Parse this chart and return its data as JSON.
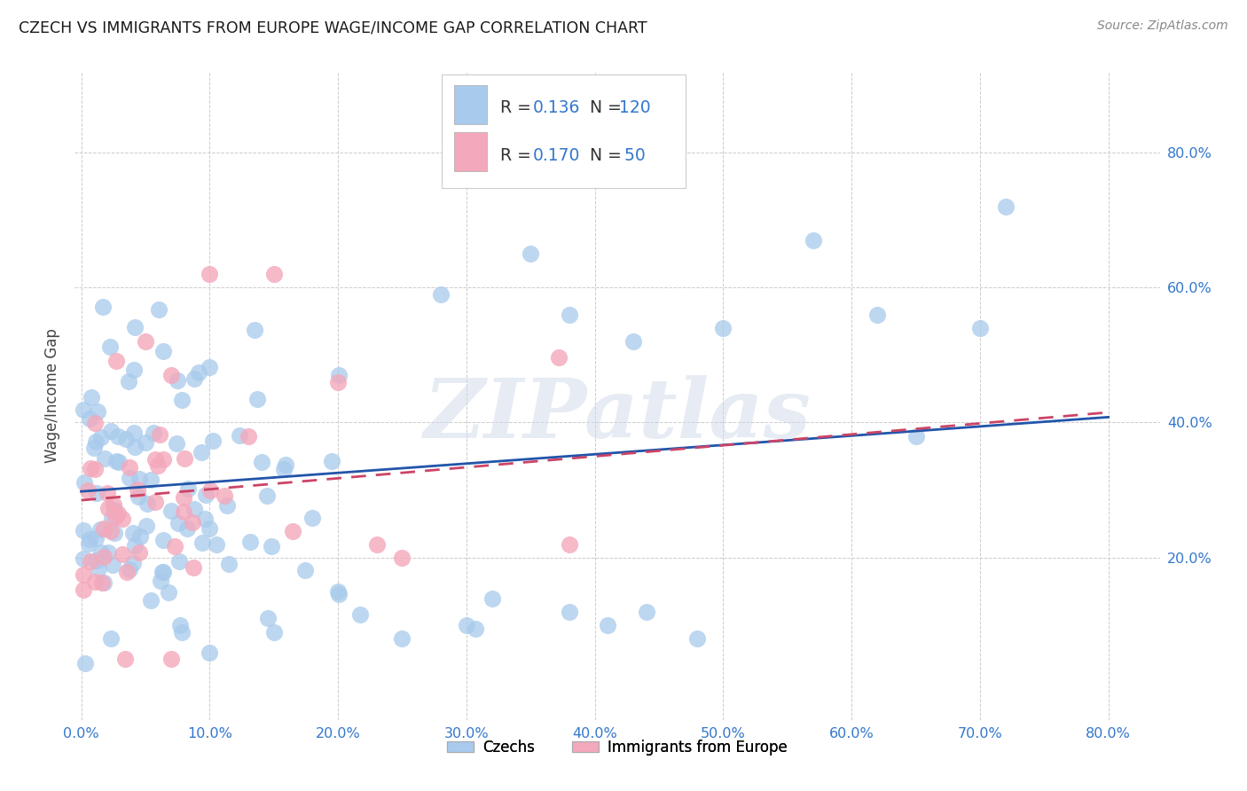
{
  "title": "CZECH VS IMMIGRANTS FROM EUROPE WAGE/INCOME GAP CORRELATION CHART",
  "source": "Source: ZipAtlas.com",
  "ylabel": "Wage/Income Gap",
  "watermark": "ZIPatlas",
  "xlim": [
    -0.005,
    0.84
  ],
  "ylim": [
    -0.04,
    0.92
  ],
  "yticks": [
    0.2,
    0.4,
    0.6,
    0.8
  ],
  "xticks": [
    0.0,
    0.1,
    0.2,
    0.3,
    0.4,
    0.5,
    0.6,
    0.7,
    0.8
  ],
  "blue_color": "#A8CAEC",
  "pink_color": "#F4A8BB",
  "line_blue_color": "#2255AA",
  "line_pink_color": "#CC4466",
  "axis_tick_color": "#3377CC",
  "title_color": "#1a1a1a",
  "source_color": "#888888",
  "ylabel_color": "#444444",
  "legend_text_color": "#333333",
  "legend_value_color": "#3377CC",
  "czechs_label": "Czechs",
  "immigrants_label": "Immigrants from Europe",
  "legend_r_blue": "0.136",
  "legend_n_blue": "120",
  "legend_r_pink": "0.170",
  "legend_n_pink": "50",
  "blue_line_start_y": 0.298,
  "blue_line_end_y": 0.408,
  "pink_line_start_y": 0.285,
  "pink_line_end_y": 0.415,
  "line_x_start": 0.0,
  "line_x_end": 0.8
}
